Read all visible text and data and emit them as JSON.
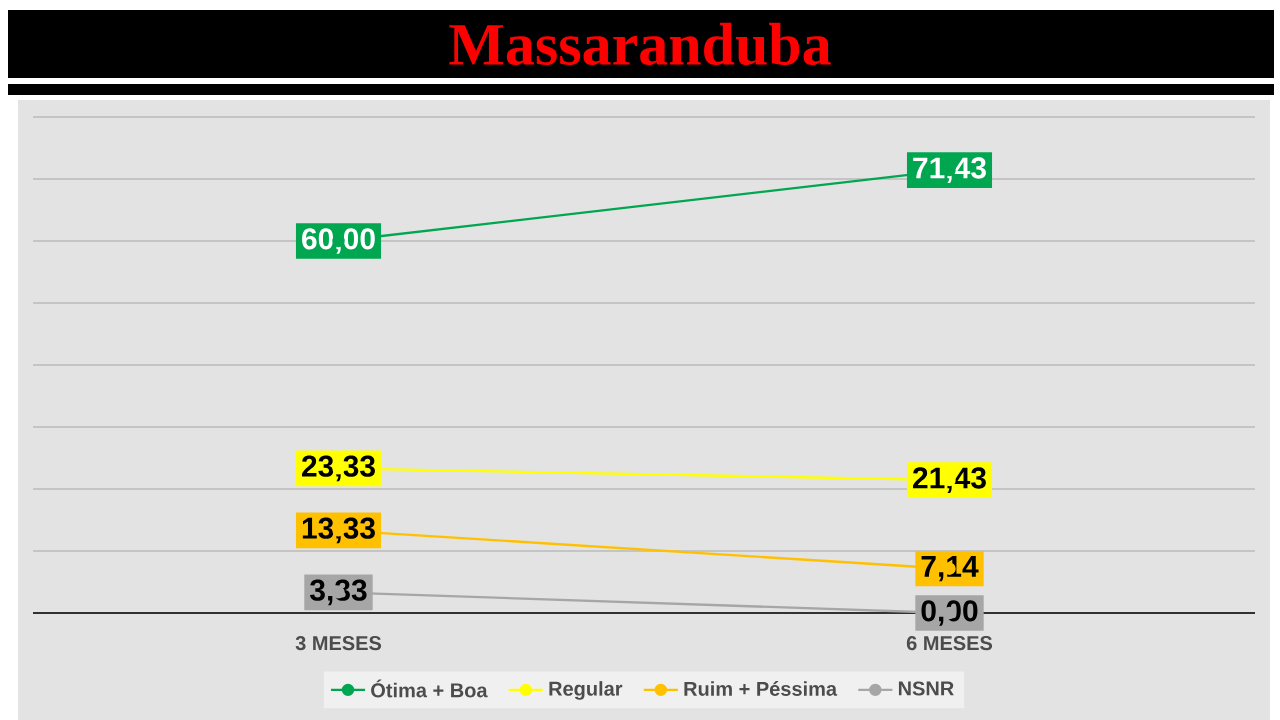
{
  "chart_data": {
    "type": "line",
    "title": "Massaranduba",
    "categories": [
      "3 MESES",
      "6 MESES"
    ],
    "series": [
      {
        "name": "Ótima + Boa",
        "color": "#00a650",
        "values": [
          60.0,
          71.43
        ],
        "value_labels": [
          "60,00",
          "71,43"
        ]
      },
      {
        "name": "Regular",
        "color": "#ffff00",
        "values": [
          23.33,
          21.43
        ],
        "value_labels": [
          "23,33",
          "21,43"
        ]
      },
      {
        "name": "Ruim + Péssima",
        "color": "#ffc000",
        "values": [
          13.33,
          7.14
        ],
        "value_labels": [
          "13,33",
          "7,14"
        ]
      },
      {
        "name": "NSNR",
        "color": "#a6a6a6",
        "values": [
          3.33,
          0.0
        ],
        "value_labels": [
          "3,33",
          "0,00"
        ]
      }
    ],
    "ylim": [
      0,
      80
    ],
    "yticks": [
      {
        "value": 0,
        "label": null
      },
      {
        "value": 10,
        "label": null
      },
      {
        "value": 20,
        "label": null
      },
      {
        "value": 30,
        "label": null
      },
      {
        "value": 40,
        "label": null
      },
      {
        "value": 50,
        "label": null
      },
      {
        "value": 60,
        "label": null
      },
      {
        "value": 70,
        "label": null
      },
      {
        "value": 80,
        "label": null
      }
    ],
    "tick_labels": "x",
    "grid": "y",
    "legend": "bottom",
    "marker": "circle"
  }
}
